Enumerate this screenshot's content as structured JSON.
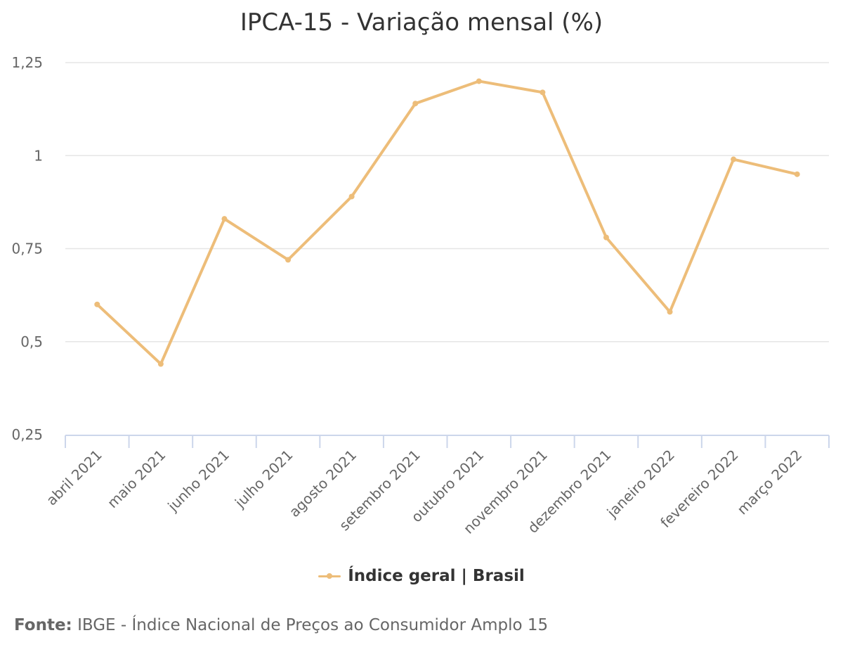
{
  "chart_data": {
    "type": "line",
    "title": "IPCA-15 - Variação mensal (%)",
    "xlabel": "",
    "ylabel": "",
    "categories": [
      "abril 2021",
      "maio 2021",
      "junho 2021",
      "julho 2021",
      "agosto 2021",
      "setembro 2021",
      "outubro 2021",
      "novembro 2021",
      "dezembro 2021",
      "janeiro 2022",
      "fevereiro 2022",
      "março 2022"
    ],
    "series": [
      {
        "name": "Índice geral | Brasil",
        "color": "#EDBD79",
        "values": [
          0.6,
          0.44,
          0.83,
          0.72,
          0.89,
          1.14,
          1.2,
          1.17,
          0.78,
          0.58,
          0.99,
          0.95
        ]
      }
    ],
    "ylim": [
      0.25,
      1.25
    ],
    "yticks": [
      0.25,
      0.5,
      0.75,
      1,
      1.25
    ],
    "ytick_labels": [
      "0,25",
      "0,5",
      "0,75",
      "1",
      "1,25"
    ],
    "grid": true,
    "legend_position": "bottom-center",
    "gridline_color": "#E6E6E6",
    "axis_color": "#CCD6EB"
  },
  "source": {
    "label": "Fonte:",
    "text": "IBGE - Índice Nacional de Preços ao Consumidor Amplo 15"
  }
}
